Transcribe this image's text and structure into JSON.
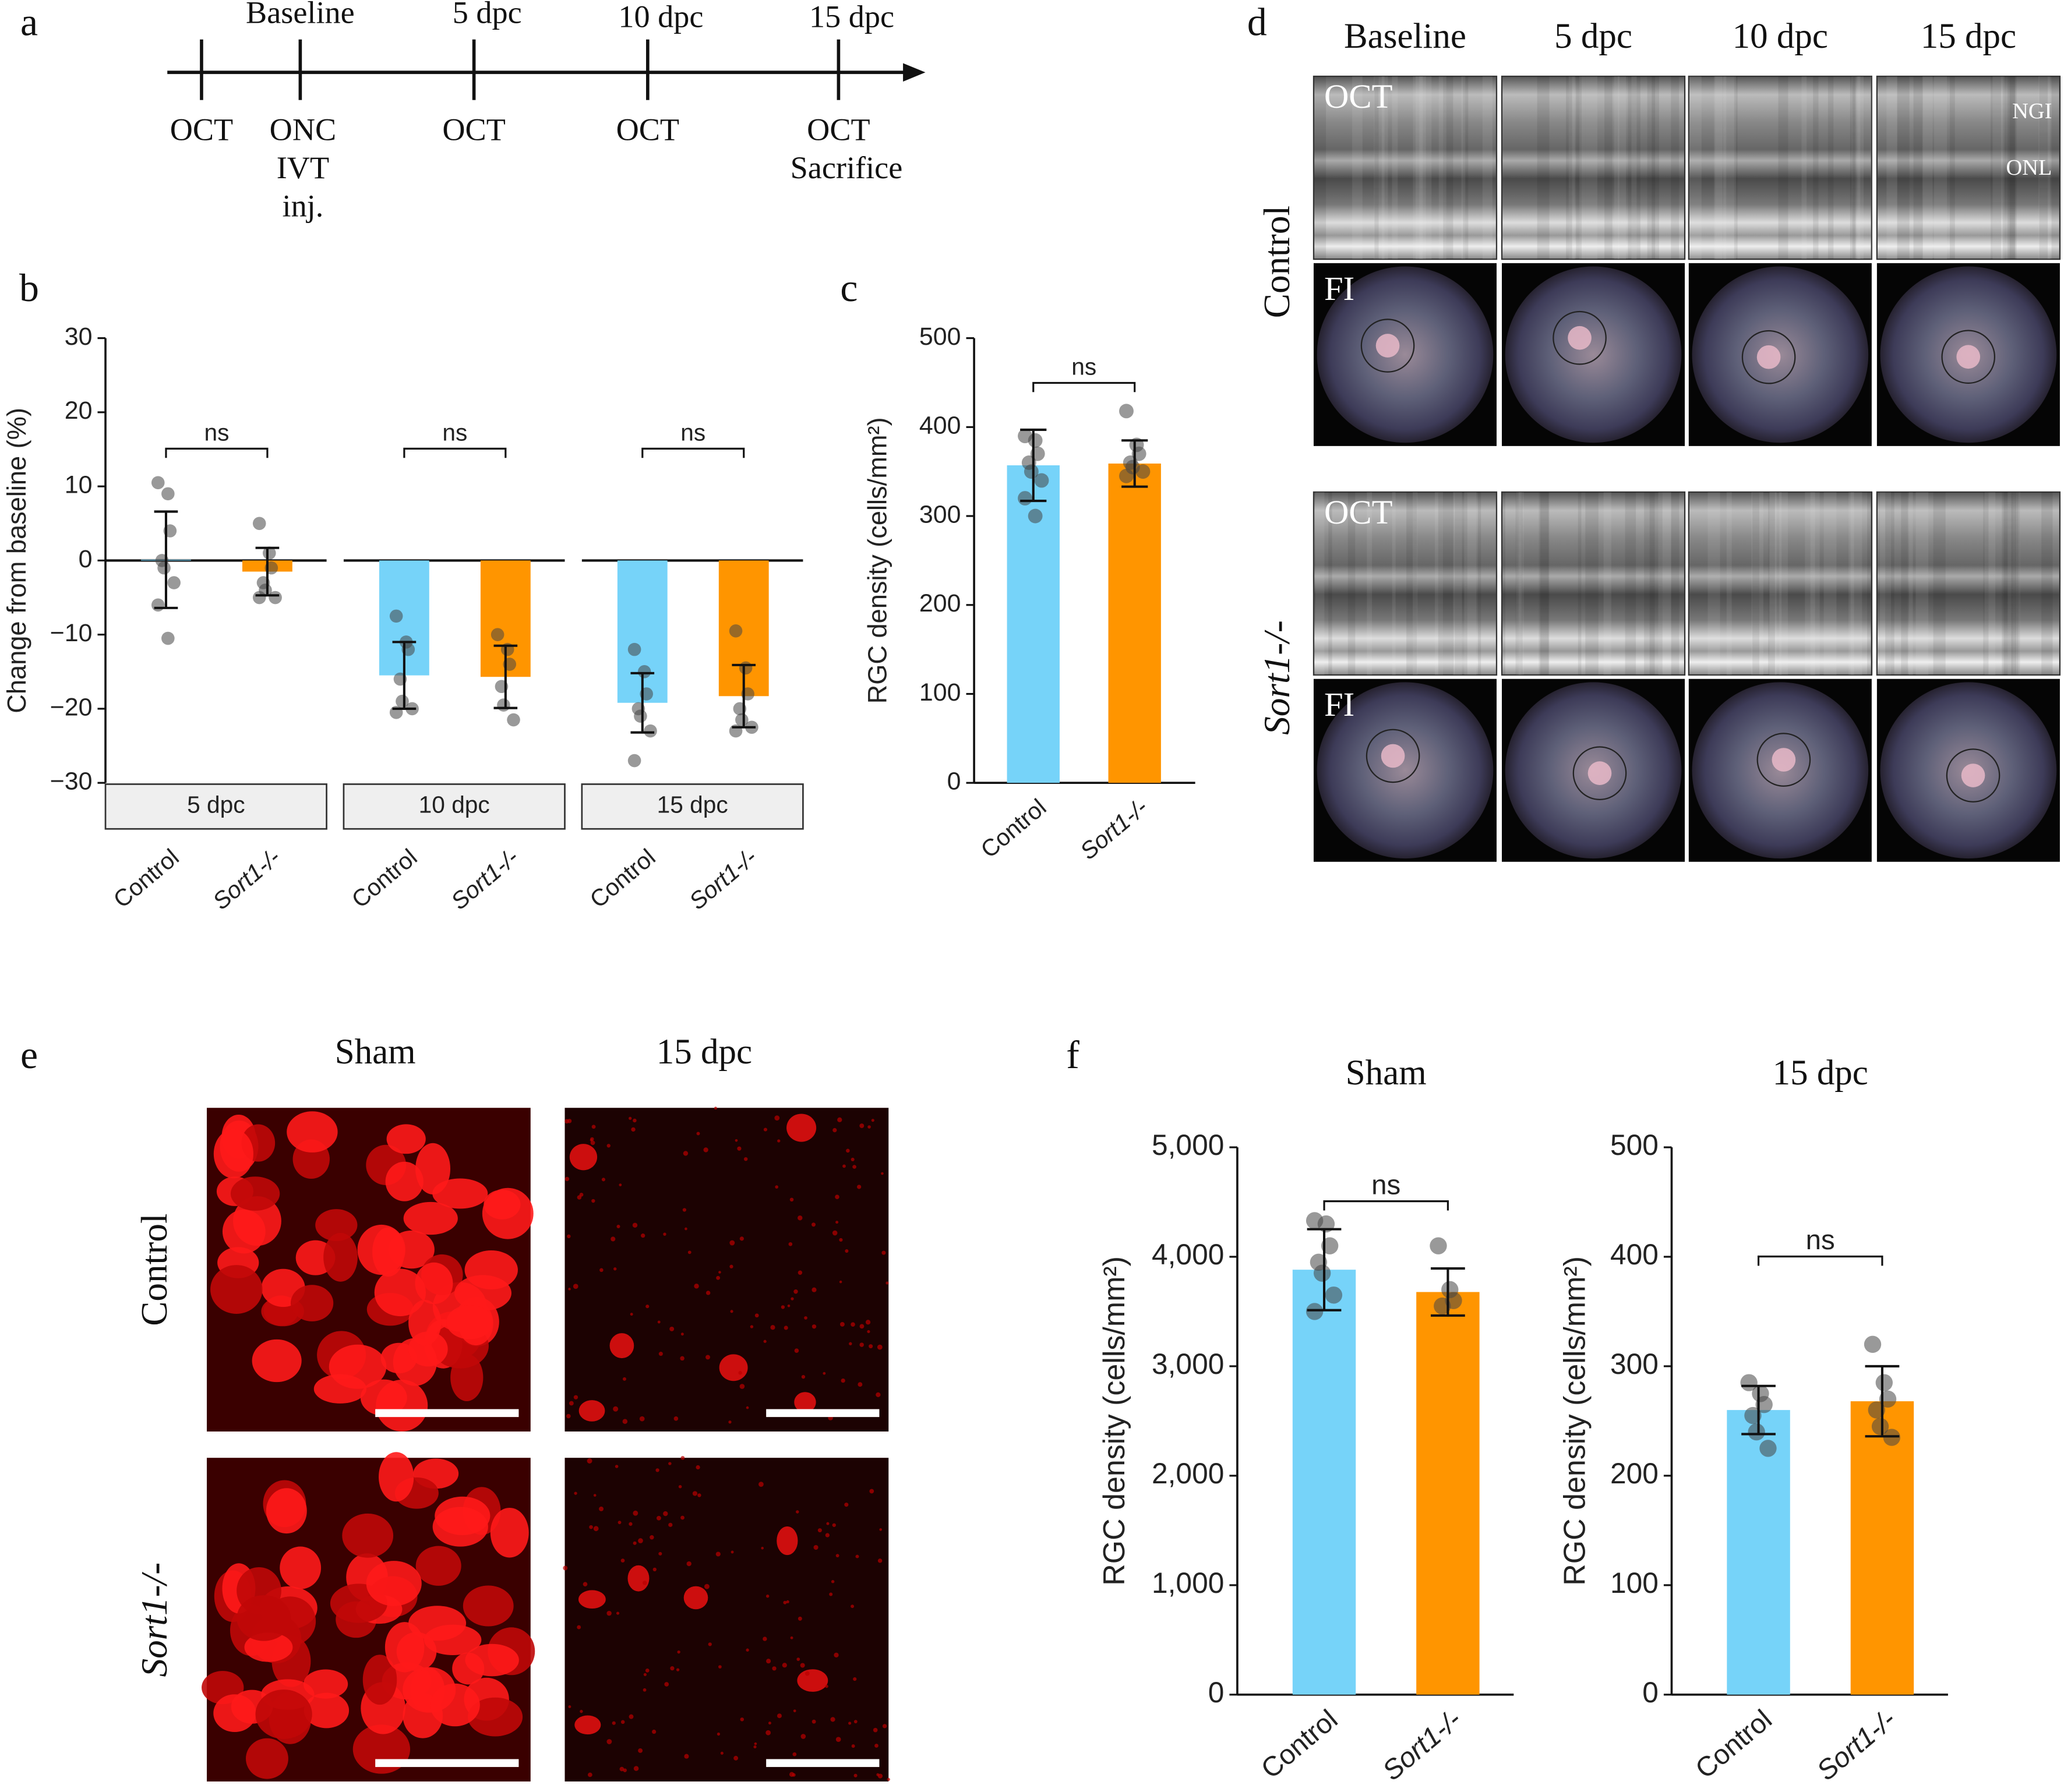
{
  "panel_labels": [
    "a",
    "b",
    "c",
    "d",
    "e",
    "f"
  ],
  "timeline": {
    "events": [
      {
        "below": [
          "OCT"
        ]
      },
      {
        "above": "Baseline",
        "below": [
          "ONC",
          "IVT",
          "inj."
        ]
      },
      {
        "above": "5 dpc",
        "below": [
          "OCT"
        ]
      },
      {
        "above": "10 dpc",
        "below": [
          "OCT"
        ]
      },
      {
        "above": "15 dpc",
        "below": [
          "OCT",
          "Sacrifice"
        ]
      }
    ]
  },
  "imaging": {
    "columns": [
      "Baseline",
      "5 dpc",
      "10 dpc",
      "15 dpc"
    ],
    "rows": [
      "Control",
      "Sort1-/-"
    ],
    "modalities": [
      "OCT",
      "FI"
    ],
    "layers": [
      "NGI",
      "ONL"
    ]
  },
  "staining": {
    "columns": [
      "Sham",
      "15 dpc"
    ],
    "rows": [
      "Control",
      "Sort1-/-"
    ]
  },
  "chart_data": [
    {
      "type": "bar",
      "y_label": "Change from baseline (%)",
      "ylim": [
        -30,
        30
      ],
      "yticks": [
        {
          "value": -30,
          "label": "−30"
        },
        {
          "value": -20,
          "label": "−20"
        },
        {
          "value": -10,
          "label": "−10"
        },
        0,
        10,
        20,
        30
      ],
      "categories": [
        "Control",
        "Sort1-/-"
      ],
      "colors": [
        "#76d3f9",
        "#ff9500"
      ],
      "groups": [
        {
          "facet": "5 dpc",
          "values": [
            0.1,
            -1.5
          ],
          "errors": [
            6.5,
            3.2
          ],
          "points": [
            [
              10.5,
              9,
              4,
              0,
              -1,
              -3,
              -6,
              -10.5
            ],
            [
              5,
              1,
              -1,
              -3,
              -4,
              -5,
              -5
            ]
          ],
          "annotation": "ns"
        },
        {
          "facet": "10 dpc",
          "values": [
            -15.5,
            -15.7
          ],
          "errors": [
            4.5,
            4.2
          ],
          "points": [
            [
              -7.5,
              -11,
              -12,
              -16,
              -19,
              -20,
              -20.5
            ],
            [
              -10,
              -12,
              -14,
              -17,
              -19.5,
              -21.5
            ]
          ],
          "annotation": "ns"
        },
        {
          "facet": "15 dpc",
          "values": [
            -19.2,
            -18.3
          ],
          "errors": [
            4,
            4.2
          ],
          "points": [
            [
              -12,
              -15,
              -18,
              -20,
              -21,
              -23,
              -27
            ],
            [
              -9.5,
              -14.5,
              -18,
              -20,
              -21.5,
              -22.5,
              -23
            ]
          ],
          "annotation": "ns"
        }
      ]
    },
    {
      "type": "bar",
      "y_label": "RGC density (cells/mm²)",
      "ylim": [
        0,
        500
      ],
      "yticks": [
        0,
        100,
        200,
        300,
        400,
        500
      ],
      "categories": [
        "Control",
        "Sort1-/-"
      ],
      "colors": [
        "#76d3f9",
        "#ff9500"
      ],
      "groups": [
        {
          "values": [
            357,
            359
          ],
          "errors": [
            40,
            26
          ],
          "points": [
            [
              390,
              385,
              370,
              360,
              350,
              340,
              320,
              300
            ],
            [
              418,
              380,
              370,
              360,
              355,
              350,
              345
            ]
          ],
          "annotation": "ns"
        }
      ]
    },
    {
      "type": "bar",
      "title": "Sham",
      "y_label": "RGC density (cells/mm²)",
      "ylim": [
        0,
        5000
      ],
      "yticks": [
        0,
        {
          "value": 1000,
          "label": "1,000"
        },
        {
          "value": 2000,
          "label": "2,000"
        },
        {
          "value": 3000,
          "label": "3,000"
        },
        {
          "value": 4000,
          "label": "4,000"
        },
        {
          "value": 5000,
          "label": "5,000"
        }
      ],
      "categories": [
        "Control",
        "Sort1-/-"
      ],
      "colors": [
        "#76d3f9",
        "#ff9500"
      ],
      "groups": [
        {
          "values": [
            3882,
            3678
          ],
          "errors": [
            370,
            215
          ],
          "points": [
            [
              4330,
              4300,
              4100,
              3950,
              3850,
              3650,
              3500
            ],
            [
              4100,
              3700,
              3600,
              3550
            ]
          ],
          "annotation": "ns"
        }
      ]
    },
    {
      "type": "bar",
      "title": "15 dpc",
      "y_label": "RGC density (cells/mm²)",
      "ylim": [
        0,
        500
      ],
      "yticks": [
        0,
        100,
        200,
        300,
        400,
        500
      ],
      "categories": [
        "Control",
        "Sort1-/-"
      ],
      "colors": [
        "#76d3f9",
        "#ff9500"
      ],
      "groups": [
        {
          "values": [
            260,
            268
          ],
          "errors": [
            22,
            32
          ],
          "points": [
            [
              285,
              275,
              265,
              255,
              240,
              225
            ],
            [
              320,
              285,
              270,
              260,
              245,
              235
            ]
          ],
          "annotation": "ns"
        }
      ]
    }
  ]
}
